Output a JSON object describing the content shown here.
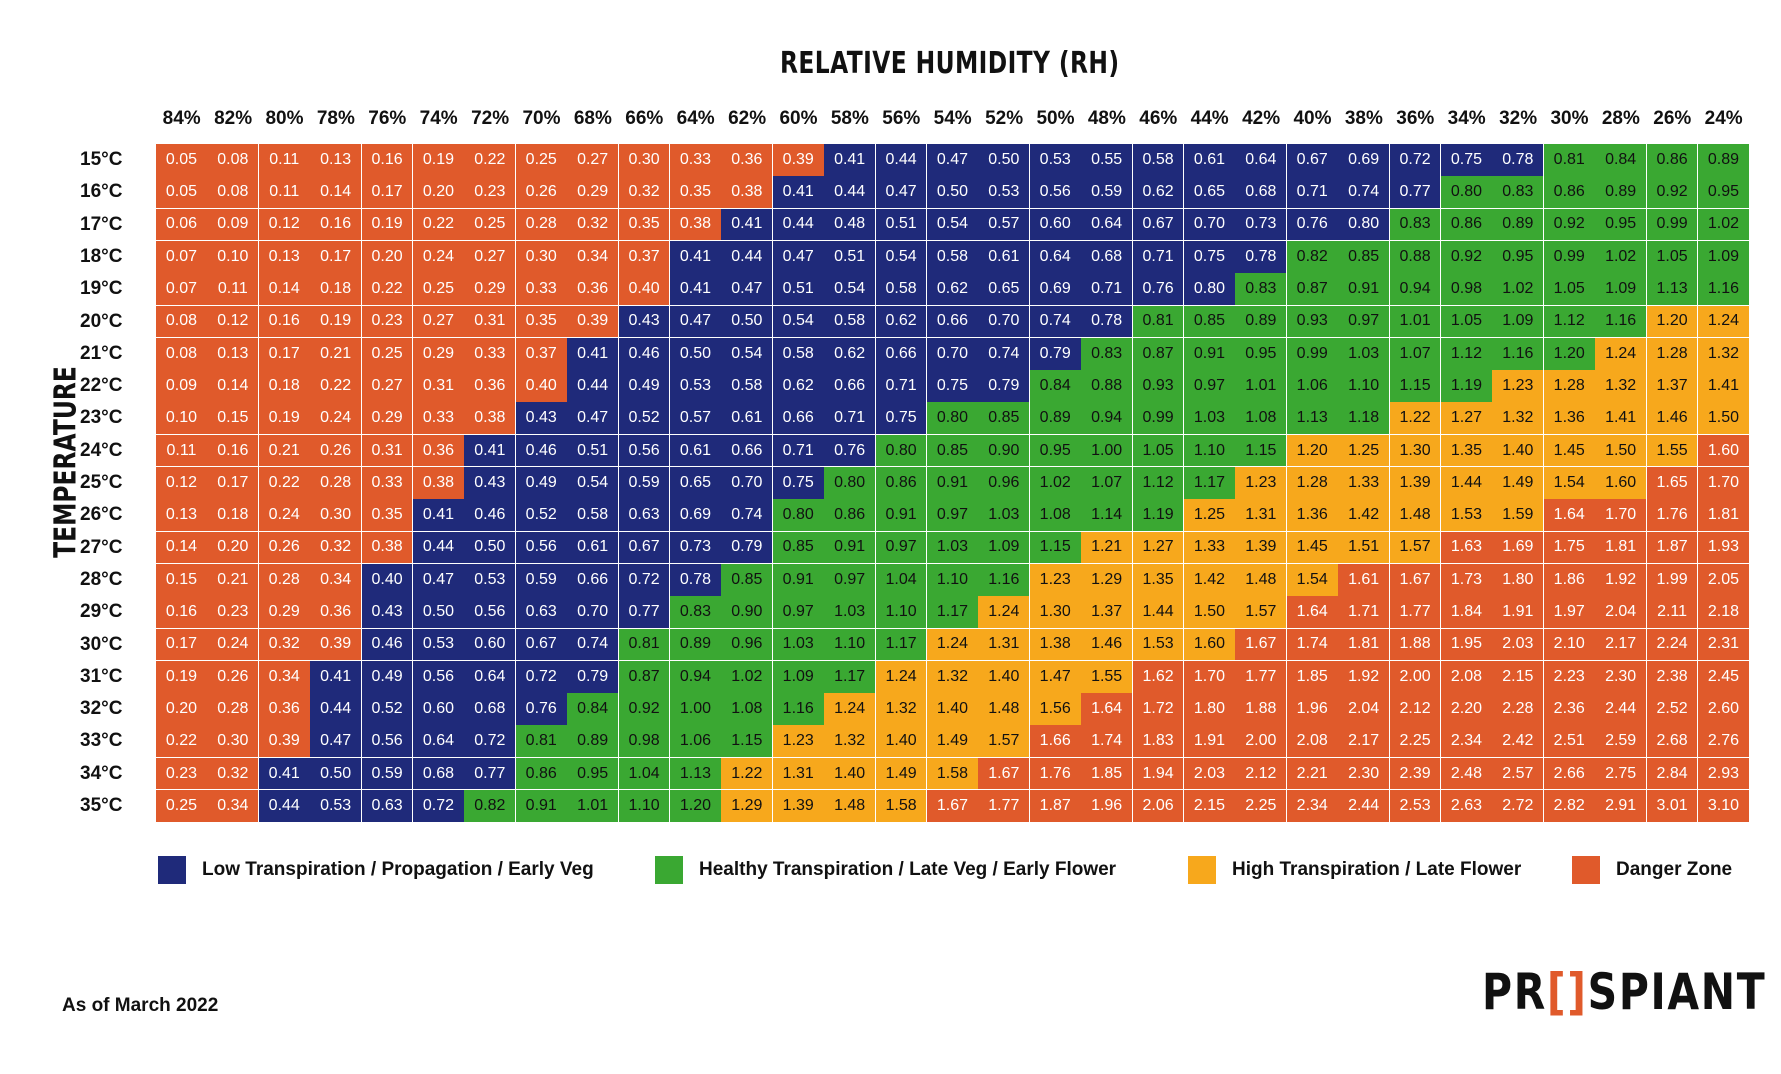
{
  "chart_data": {
    "type": "heatmap",
    "title": "RELATIVE HUMIDITY (RH)",
    "xlabel": "RELATIVE HUMIDITY (RH)",
    "ylabel": "TEMPERATURE",
    "x": [
      "84%",
      "82%",
      "80%",
      "78%",
      "76%",
      "74%",
      "72%",
      "70%",
      "68%",
      "66%",
      "64%",
      "62%",
      "60%",
      "58%",
      "56%",
      "54%",
      "52%",
      "50%",
      "48%",
      "46%",
      "44%",
      "42%",
      "40%",
      "38%",
      "36%",
      "34%",
      "32%",
      "30%",
      "28%",
      "26%",
      "24%"
    ],
    "y": [
      "15°C",
      "16°C",
      "17°C",
      "18°C",
      "19°C",
      "20°C",
      "21°C",
      "22°C",
      "23°C",
      "24°C",
      "25°C",
      "26°C",
      "27°C",
      "28°C",
      "29°C",
      "30°C",
      "31°C",
      "32°C",
      "33°C",
      "34°C",
      "35°C"
    ],
    "values": [
      [
        "0.05",
        "0.08",
        "0.11",
        "0.13",
        "0.16",
        "0.19",
        "0.22",
        "0.25",
        "0.27",
        "0.30",
        "0.33",
        "0.36",
        "0.39",
        "0.41",
        "0.44",
        "0.47",
        "0.50",
        "0.53",
        "0.55",
        "0.58",
        "0.61",
        "0.64",
        "0.67",
        "0.69",
        "0.72",
        "0.75",
        "0.78",
        "0.81",
        "0.84",
        "0.86",
        "0.89"
      ],
      [
        "0.05",
        "0.08",
        "0.11",
        "0.14",
        "0.17",
        "0.20",
        "0.23",
        "0.26",
        "0.29",
        "0.32",
        "0.35",
        "0.38",
        "0.41",
        "0.44",
        "0.47",
        "0.50",
        "0.53",
        "0.56",
        "0.59",
        "0.62",
        "0.65",
        "0.68",
        "0.71",
        "0.74",
        "0.77",
        "0.80",
        "0.83",
        "0.86",
        "0.89",
        "0.92",
        "0.95"
      ],
      [
        "0.06",
        "0.09",
        "0.12",
        "0.16",
        "0.19",
        "0.22",
        "0.25",
        "0.28",
        "0.32",
        "0.35",
        "0.38",
        "0.41",
        "0.44",
        "0.48",
        "0.51",
        "0.54",
        "0.57",
        "0.60",
        "0.64",
        "0.67",
        "0.70",
        "0.73",
        "0.76",
        "0.80",
        "0.83",
        "0.86",
        "0.89",
        "0.92",
        "0.95",
        "0.99",
        "1.02"
      ],
      [
        "0.07",
        "0.10",
        "0.13",
        "0.17",
        "0.20",
        "0.24",
        "0.27",
        "0.30",
        "0.34",
        "0.37",
        "0.41",
        "0.44",
        "0.47",
        "0.51",
        "0.54",
        "0.58",
        "0.61",
        "0.64",
        "0.68",
        "0.71",
        "0.75",
        "0.78",
        "0.82",
        "0.85",
        "0.88",
        "0.92",
        "0.95",
        "0.99",
        "1.02",
        "1.05",
        "1.09"
      ],
      [
        "0.07",
        "0.11",
        "0.14",
        "0.18",
        "0.22",
        "0.25",
        "0.29",
        "0.33",
        "0.36",
        "0.40",
        "0.41",
        "0.47",
        "0.51",
        "0.54",
        "0.58",
        "0.62",
        "0.65",
        "0.69",
        "0.71",
        "0.76",
        "0.80",
        "0.83",
        "0.87",
        "0.91",
        "0.94",
        "0.98",
        "1.02",
        "1.05",
        "1.09",
        "1.13",
        "1.16"
      ],
      [
        "0.08",
        "0.12",
        "0.16",
        "0.19",
        "0.23",
        "0.27",
        "0.31",
        "0.35",
        "0.39",
        "0.43",
        "0.47",
        "0.50",
        "0.54",
        "0.58",
        "0.62",
        "0.66",
        "0.70",
        "0.74",
        "0.78",
        "0.81",
        "0.85",
        "0.89",
        "0.93",
        "0.97",
        "1.01",
        "1.05",
        "1.09",
        "1.12",
        "1.16",
        "1.20",
        "1.24"
      ],
      [
        "0.08",
        "0.13",
        "0.17",
        "0.21",
        "0.25",
        "0.29",
        "0.33",
        "0.37",
        "0.41",
        "0.46",
        "0.50",
        "0.54",
        "0.58",
        "0.62",
        "0.66",
        "0.70",
        "0.74",
        "0.79",
        "0.83",
        "0.87",
        "0.91",
        "0.95",
        "0.99",
        "1.03",
        "1.07",
        "1.12",
        "1.16",
        "1.20",
        "1.24",
        "1.28",
        "1.32"
      ],
      [
        "0.09",
        "0.14",
        "0.18",
        "0.22",
        "0.27",
        "0.31",
        "0.36",
        "0.40",
        "0.44",
        "0.49",
        "0.53",
        "0.58",
        "0.62",
        "0.66",
        "0.71",
        "0.75",
        "0.79",
        "0.84",
        "0.88",
        "0.93",
        "0.97",
        "1.01",
        "1.06",
        "1.10",
        "1.15",
        "1.19",
        "1.23",
        "1.28",
        "1.32",
        "1.37",
        "1.41"
      ],
      [
        "0.10",
        "0.15",
        "0.19",
        "0.24",
        "0.29",
        "0.33",
        "0.38",
        "0.43",
        "0.47",
        "0.52",
        "0.57",
        "0.61",
        "0.66",
        "0.71",
        "0.75",
        "0.80",
        "0.85",
        "0.89",
        "0.94",
        "0.99",
        "1.03",
        "1.08",
        "1.13",
        "1.18",
        "1.22",
        "1.27",
        "1.32",
        "1.36",
        "1.41",
        "1.46",
        "1.50"
      ],
      [
        "0.11",
        "0.16",
        "0.21",
        "0.26",
        "0.31",
        "0.36",
        "0.41",
        "0.46",
        "0.51",
        "0.56",
        "0.61",
        "0.66",
        "0.71",
        "0.76",
        "0.80",
        "0.85",
        "0.90",
        "0.95",
        "1.00",
        "1.05",
        "1.10",
        "1.15",
        "1.20",
        "1.25",
        "1.30",
        "1.35",
        "1.40",
        "1.45",
        "1.50",
        "1.55",
        "1.60"
      ],
      [
        "0.12",
        "0.17",
        "0.22",
        "0.28",
        "0.33",
        "0.38",
        "0.43",
        "0.49",
        "0.54",
        "0.59",
        "0.65",
        "0.70",
        "0.75",
        "0.80",
        "0.86",
        "0.91",
        "0.96",
        "1.02",
        "1.07",
        "1.12",
        "1.17",
        "1.23",
        "1.28",
        "1.33",
        "1.39",
        "1.44",
        "1.49",
        "1.54",
        "1.60",
        "1.65",
        "1.70"
      ],
      [
        "0.13",
        "0.18",
        "0.24",
        "0.30",
        "0.35",
        "0.41",
        "0.46",
        "0.52",
        "0.58",
        "0.63",
        "0.69",
        "0.74",
        "0.80",
        "0.86",
        "0.91",
        "0.97",
        "1.03",
        "1.08",
        "1.14",
        "1.19",
        "1.25",
        "1.31",
        "1.36",
        "1.42",
        "1.48",
        "1.53",
        "1.59",
        "1.64",
        "1.70",
        "1.76",
        "1.81"
      ],
      [
        "0.14",
        "0.20",
        "0.26",
        "0.32",
        "0.38",
        "0.44",
        "0.50",
        "0.56",
        "0.61",
        "0.67",
        "0.73",
        "0.79",
        "0.85",
        "0.91",
        "0.97",
        "1.03",
        "1.09",
        "1.15",
        "1.21",
        "1.27",
        "1.33",
        "1.39",
        "1.45",
        "1.51",
        "1.57",
        "1.63",
        "1.69",
        "1.75",
        "1.81",
        "1.87",
        "1.93"
      ],
      [
        "0.15",
        "0.21",
        "0.28",
        "0.34",
        "0.40",
        "0.47",
        "0.53",
        "0.59",
        "0.66",
        "0.72",
        "0.78",
        "0.85",
        "0.91",
        "0.97",
        "1.04",
        "1.10",
        "1.16",
        "1.23",
        "1.29",
        "1.35",
        "1.42",
        "1.48",
        "1.54",
        "1.61",
        "1.67",
        "1.73",
        "1.80",
        "1.86",
        "1.92",
        "1.99",
        "2.05"
      ],
      [
        "0.16",
        "0.23",
        "0.29",
        "0.36",
        "0.43",
        "0.50",
        "0.56",
        "0.63",
        "0.70",
        "0.77",
        "0.83",
        "0.90",
        "0.97",
        "1.03",
        "1.10",
        "1.17",
        "1.24",
        "1.30",
        "1.37",
        "1.44",
        "1.50",
        "1.57",
        "1.64",
        "1.71",
        "1.77",
        "1.84",
        "1.91",
        "1.97",
        "2.04",
        "2.11",
        "2.18"
      ],
      [
        "0.17",
        "0.24",
        "0.32",
        "0.39",
        "0.46",
        "0.53",
        "0.60",
        "0.67",
        "0.74",
        "0.81",
        "0.89",
        "0.96",
        "1.03",
        "1.10",
        "1.17",
        "1.24",
        "1.31",
        "1.38",
        "1.46",
        "1.53",
        "1.60",
        "1.67",
        "1.74",
        "1.81",
        "1.88",
        "1.95",
        "2.03",
        "2.10",
        "2.17",
        "2.24",
        "2.31"
      ],
      [
        "0.19",
        "0.26",
        "0.34",
        "0.41",
        "0.49",
        "0.56",
        "0.64",
        "0.72",
        "0.79",
        "0.87",
        "0.94",
        "1.02",
        "1.09",
        "1.17",
        "1.24",
        "1.32",
        "1.40",
        "1.47",
        "1.55",
        "1.62",
        "1.70",
        "1.77",
        "1.85",
        "1.92",
        "2.00",
        "2.08",
        "2.15",
        "2.23",
        "2.30",
        "2.38",
        "2.45"
      ],
      [
        "0.20",
        "0.28",
        "0.36",
        "0.44",
        "0.52",
        "0.60",
        "0.68",
        "0.76",
        "0.84",
        "0.92",
        "1.00",
        "1.08",
        "1.16",
        "1.24",
        "1.32",
        "1.40",
        "1.48",
        "1.56",
        "1.64",
        "1.72",
        "1.80",
        "1.88",
        "1.96",
        "2.04",
        "2.12",
        "2.20",
        "2.28",
        "2.36",
        "2.44",
        "2.52",
        "2.60"
      ],
      [
        "0.22",
        "0.30",
        "0.39",
        "0.47",
        "0.56",
        "0.64",
        "0.72",
        "0.81",
        "0.89",
        "0.98",
        "1.06",
        "1.15",
        "1.23",
        "1.32",
        "1.40",
        "1.49",
        "1.57",
        "1.66",
        "1.74",
        "1.83",
        "1.91",
        "2.00",
        "2.08",
        "2.17",
        "2.25",
        "2.34",
        "2.42",
        "2.51",
        "2.59",
        "2.68",
        "2.76"
      ],
      [
        "0.23",
        "0.32",
        "0.41",
        "0.50",
        "0.59",
        "0.68",
        "0.77",
        "0.86",
        "0.95",
        "1.04",
        "1.13",
        "1.22",
        "1.31",
        "1.40",
        "1.49",
        "1.58",
        "1.67",
        "1.76",
        "1.85",
        "1.94",
        "2.03",
        "2.12",
        "2.21",
        "2.30",
        "2.39",
        "2.48",
        "2.57",
        "2.66",
        "2.75",
        "2.84",
        "2.93"
      ],
      [
        "0.25",
        "0.34",
        "0.44",
        "0.53",
        "0.63",
        "0.72",
        "0.82",
        "0.91",
        "1.01",
        "1.10",
        "1.20",
        "1.29",
        "1.39",
        "1.48",
        "1.58",
        "1.67",
        "1.77",
        "1.87",
        "1.96",
        "2.06",
        "2.15",
        "2.25",
        "2.34",
        "2.44",
        "2.53",
        "2.63",
        "2.72",
        "2.82",
        "2.91",
        "3.01",
        "3.10"
      ]
    ],
    "categories": [
      [
        3,
        3,
        3,
        3,
        3,
        3,
        3,
        3,
        3,
        3,
        3,
        3,
        3,
        0,
        0,
        0,
        0,
        0,
        0,
        0,
        0,
        0,
        0,
        0,
        0,
        0,
        0,
        1,
        1,
        1,
        1
      ],
      [
        3,
        3,
        3,
        3,
        3,
        3,
        3,
        3,
        3,
        3,
        3,
        3,
        0,
        0,
        0,
        0,
        0,
        0,
        0,
        0,
        0,
        0,
        0,
        0,
        0,
        1,
        1,
        1,
        1,
        1,
        1
      ],
      [
        3,
        3,
        3,
        3,
        3,
        3,
        3,
        3,
        3,
        3,
        3,
        0,
        0,
        0,
        0,
        0,
        0,
        0,
        0,
        0,
        0,
        0,
        0,
        0,
        1,
        1,
        1,
        1,
        1,
        1,
        1
      ],
      [
        3,
        3,
        3,
        3,
        3,
        3,
        3,
        3,
        3,
        3,
        0,
        0,
        0,
        0,
        0,
        0,
        0,
        0,
        0,
        0,
        0,
        0,
        1,
        1,
        1,
        1,
        1,
        1,
        1,
        1,
        1
      ],
      [
        3,
        3,
        3,
        3,
        3,
        3,
        3,
        3,
        3,
        3,
        0,
        0,
        0,
        0,
        0,
        0,
        0,
        0,
        0,
        0,
        0,
        1,
        1,
        1,
        1,
        1,
        1,
        1,
        1,
        1,
        1
      ],
      [
        3,
        3,
        3,
        3,
        3,
        3,
        3,
        3,
        3,
        0,
        0,
        0,
        0,
        0,
        0,
        0,
        0,
        0,
        0,
        1,
        1,
        1,
        1,
        1,
        1,
        1,
        1,
        1,
        1,
        2,
        2
      ],
      [
        3,
        3,
        3,
        3,
        3,
        3,
        3,
        3,
        0,
        0,
        0,
        0,
        0,
        0,
        0,
        0,
        0,
        0,
        1,
        1,
        1,
        1,
        1,
        1,
        1,
        1,
        1,
        1,
        2,
        2,
        2
      ],
      [
        3,
        3,
        3,
        3,
        3,
        3,
        3,
        3,
        0,
        0,
        0,
        0,
        0,
        0,
        0,
        0,
        0,
        1,
        1,
        1,
        1,
        1,
        1,
        1,
        1,
        1,
        2,
        2,
        2,
        2,
        2
      ],
      [
        3,
        3,
        3,
        3,
        3,
        3,
        3,
        0,
        0,
        0,
        0,
        0,
        0,
        0,
        0,
        1,
        1,
        1,
        1,
        1,
        1,
        1,
        1,
        1,
        2,
        2,
        2,
        2,
        2,
        2,
        2
      ],
      [
        3,
        3,
        3,
        3,
        3,
        3,
        0,
        0,
        0,
        0,
        0,
        0,
        0,
        0,
        1,
        1,
        1,
        1,
        1,
        1,
        1,
        1,
        2,
        2,
        2,
        2,
        2,
        2,
        2,
        2,
        3
      ],
      [
        3,
        3,
        3,
        3,
        3,
        3,
        0,
        0,
        0,
        0,
        0,
        0,
        0,
        1,
        1,
        1,
        1,
        1,
        1,
        1,
        1,
        2,
        2,
        2,
        2,
        2,
        2,
        2,
        2,
        3,
        3
      ],
      [
        3,
        3,
        3,
        3,
        3,
        0,
        0,
        0,
        0,
        0,
        0,
        0,
        1,
        1,
        1,
        1,
        1,
        1,
        1,
        1,
        2,
        2,
        2,
        2,
        2,
        2,
        2,
        3,
        3,
        3,
        3
      ],
      [
        3,
        3,
        3,
        3,
        3,
        0,
        0,
        0,
        0,
        0,
        0,
        0,
        1,
        1,
        1,
        1,
        1,
        1,
        2,
        2,
        2,
        2,
        2,
        2,
        2,
        3,
        3,
        3,
        3,
        3,
        3
      ],
      [
        3,
        3,
        3,
        3,
        0,
        0,
        0,
        0,
        0,
        0,
        0,
        1,
        1,
        1,
        1,
        1,
        1,
        2,
        2,
        2,
        2,
        2,
        2,
        3,
        3,
        3,
        3,
        3,
        3,
        3,
        3
      ],
      [
        3,
        3,
        3,
        3,
        0,
        0,
        0,
        0,
        0,
        0,
        1,
        1,
        1,
        1,
        1,
        1,
        2,
        2,
        2,
        2,
        2,
        2,
        3,
        3,
        3,
        3,
        3,
        3,
        3,
        3,
        3
      ],
      [
        3,
        3,
        3,
        3,
        0,
        0,
        0,
        0,
        0,
        1,
        1,
        1,
        1,
        1,
        1,
        2,
        2,
        2,
        2,
        2,
        2,
        3,
        3,
        3,
        3,
        3,
        3,
        3,
        3,
        3,
        3
      ],
      [
        3,
        3,
        3,
        0,
        0,
        0,
        0,
        0,
        0,
        1,
        1,
        1,
        1,
        1,
        2,
        2,
        2,
        2,
        2,
        3,
        3,
        3,
        3,
        3,
        3,
        3,
        3,
        3,
        3,
        3,
        3
      ],
      [
        3,
        3,
        3,
        0,
        0,
        0,
        0,
        0,
        1,
        1,
        1,
        1,
        1,
        2,
        2,
        2,
        2,
        2,
        3,
        3,
        3,
        3,
        3,
        3,
        3,
        3,
        3,
        3,
        3,
        3,
        3
      ],
      [
        3,
        3,
        3,
        0,
        0,
        0,
        0,
        1,
        1,
        1,
        1,
        1,
        2,
        2,
        2,
        2,
        2,
        3,
        3,
        3,
        3,
        3,
        3,
        3,
        3,
        3,
        3,
        3,
        3,
        3,
        3
      ],
      [
        3,
        3,
        0,
        0,
        0,
        0,
        0,
        1,
        1,
        1,
        1,
        2,
        2,
        2,
        2,
        2,
        3,
        3,
        3,
        3,
        3,
        3,
        3,
        3,
        3,
        3,
        3,
        3,
        3,
        3,
        3
      ],
      [
        3,
        3,
        0,
        0,
        0,
        0,
        1,
        1,
        1,
        1,
        1,
        2,
        2,
        2,
        2,
        3,
        3,
        3,
        3,
        3,
        3,
        3,
        3,
        3,
        3,
        3,
        3,
        3,
        3,
        3,
        3
      ]
    ],
    "legend": [
      {
        "label": "Low Transpiration / Propagation / Early Veg",
        "color": "#1f2a7a"
      },
      {
        "label": "Healthy Transpiration / Late Veg / Early Flower",
        "color": "#3aa832"
      },
      {
        "label": "High Transpiration / Late Flower",
        "color": "#f7a81c"
      },
      {
        "label": "Danger Zone",
        "color": "#e05a2b"
      }
    ],
    "legend_position": "bottom",
    "grid": true
  },
  "footer": {
    "note": "As of March 2022",
    "logo_text": "PROSPIANT"
  }
}
